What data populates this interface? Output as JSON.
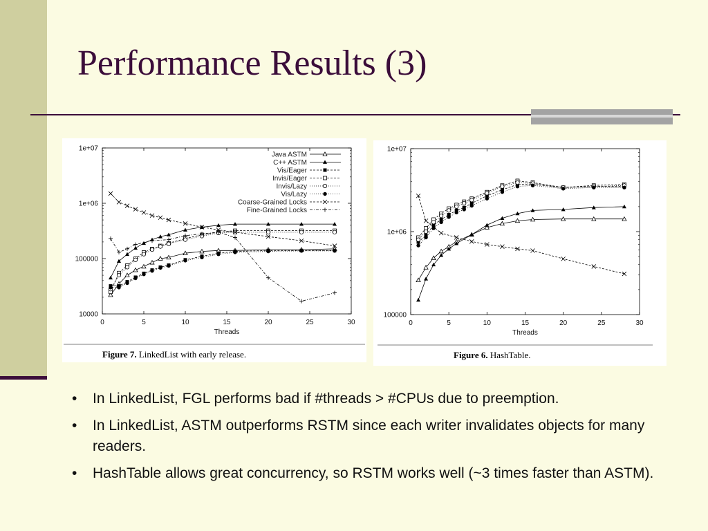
{
  "slide": {
    "title": "Performance Results (3)",
    "bullets": [
      "In LinkedList, FGL performs bad if #threads > #CPUs due to preemption.",
      "In LinkedList, ASTM outperforms RSTM since each writer invalidates objects for many readers.",
      "HashTable allows great concurrency, so RSTM works well (~3 times faster than ASTM)."
    ],
    "bullet_symbol": "•"
  },
  "chart_data": [
    {
      "type": "line",
      "caption_label": "Figure 7.",
      "caption_text": "LinkedList with early release.",
      "xlabel": "Threads",
      "ylabel": "",
      "x_ticks": [
        "0",
        "5",
        "10",
        "15",
        "20",
        "25",
        "30"
      ],
      "y_ticks": [
        "10000",
        "100000",
        "1e+06",
        "1e+07"
      ],
      "xlim": [
        0,
        30
      ],
      "ylim": [
        10000,
        10000000
      ],
      "y_scale": "log",
      "legend_position": "top-right",
      "series": [
        {
          "name": "Java ASTM",
          "marker": "open-triangle",
          "dash": "solid",
          "x": [
            1,
            2,
            3,
            4,
            5,
            6,
            7,
            8,
            10,
            12,
            14,
            16,
            20,
            24,
            28
          ],
          "y": [
            22000,
            35000,
            50000,
            62000,
            72000,
            85000,
            100000,
            105000,
            125000,
            135000,
            140000,
            140000,
            145000,
            145000,
            150000
          ]
        },
        {
          "name": "C++ ASTM",
          "marker": "filled-triangle",
          "dash": "solid",
          "x": [
            1,
            2,
            3,
            4,
            5,
            6,
            7,
            8,
            10,
            12,
            14,
            16,
            20,
            24,
            28
          ],
          "y": [
            45000,
            90000,
            120000,
            155000,
            190000,
            220000,
            250000,
            270000,
            330000,
            370000,
            400000,
            420000,
            420000,
            420000,
            420000
          ]
        },
        {
          "name": "Vis/Eager",
          "marker": "filled-square",
          "dash": "dashed",
          "x": [
            1,
            2,
            3,
            4,
            5,
            6,
            7,
            8,
            10,
            12,
            14,
            16,
            20,
            24,
            28
          ],
          "y": [
            32000,
            32000,
            38000,
            46000,
            54000,
            62000,
            70000,
            76000,
            95000,
            110000,
            125000,
            135000,
            140000,
            140000,
            140000
          ]
        },
        {
          "name": "Invis/Eager",
          "marker": "open-square",
          "dash": "dashed",
          "x": [
            1,
            2,
            3,
            4,
            5,
            6,
            7,
            8,
            10,
            12,
            14,
            16,
            20,
            24,
            28
          ],
          "y": [
            25000,
            55000,
            75000,
            100000,
            130000,
            150000,
            170000,
            190000,
            230000,
            270000,
            300000,
            320000,
            320000,
            320000,
            320000
          ]
        },
        {
          "name": "Invis/Lazy",
          "marker": "open-circle",
          "dash": "dotted",
          "x": [
            1,
            2,
            3,
            4,
            5,
            6,
            7,
            8,
            10,
            12,
            14,
            16,
            20,
            24,
            28
          ],
          "y": [
            28000,
            50000,
            70000,
            95000,
            120000,
            145000,
            165000,
            185000,
            220000,
            255000,
            290000,
            300000,
            300000,
            300000,
            300000
          ]
        },
        {
          "name": "Vis/Lazy",
          "marker": "filled-circle",
          "dash": "dotted",
          "x": [
            1,
            2,
            3,
            4,
            5,
            6,
            7,
            8,
            10,
            12,
            14,
            16,
            20,
            24,
            28
          ],
          "y": [
            30000,
            30000,
            36000,
            44000,
            52000,
            60000,
            68000,
            74000,
            92000,
            105000,
            120000,
            130000,
            135000,
            138000,
            138000
          ]
        },
        {
          "name": "Coarse-Grained Locks",
          "marker": "x",
          "dash": "dashed",
          "x": [
            1,
            2,
            3,
            4,
            5,
            6,
            7,
            8,
            10,
            12,
            14,
            16,
            20,
            24,
            28
          ],
          "y": [
            1500000,
            1050000,
            900000,
            780000,
            680000,
            600000,
            550000,
            500000,
            430000,
            370000,
            330000,
            300000,
            250000,
            210000,
            170000
          ]
        },
        {
          "name": "Fine-Grained Locks",
          "marker": "plus",
          "dash": "dash-dot",
          "x": [
            1,
            2,
            3,
            4,
            6,
            8,
            10,
            12,
            14,
            16,
            20,
            24,
            28
          ],
          "y": [
            230000,
            130000,
            150000,
            180000,
            210000,
            220000,
            260000,
            280000,
            300000,
            240000,
            45000,
            17000,
            24000
          ]
        }
      ]
    },
    {
      "type": "line",
      "caption_label": "Figure 6.",
      "caption_text": "HashTable.",
      "xlabel": "Threads",
      "ylabel": "",
      "x_ticks": [
        "0",
        "5",
        "10",
        "15",
        "20",
        "25",
        "30"
      ],
      "y_ticks": [
        "100000",
        "1e+06",
        "1e+07"
      ],
      "xlim": [
        0,
        30
      ],
      "ylim": [
        100000,
        10000000
      ],
      "y_scale": "log",
      "series": [
        {
          "name": "Java ASTM",
          "marker": "open-triangle",
          "dash": "solid",
          "x": [
            1,
            2,
            3,
            4,
            5,
            6,
            8,
            10,
            12,
            14,
            16,
            20,
            24,
            28
          ],
          "y": [
            260000,
            370000,
            480000,
            580000,
            660000,
            760000,
            920000,
            1120000,
            1250000,
            1350000,
            1400000,
            1420000,
            1420000,
            1420000
          ]
        },
        {
          "name": "C++ ASTM",
          "marker": "filled-triangle",
          "dash": "solid",
          "x": [
            1,
            2,
            3,
            4,
            5,
            6,
            8,
            10,
            12,
            14,
            16,
            20,
            24,
            28
          ],
          "y": [
            150000,
            270000,
            400000,
            520000,
            620000,
            720000,
            920000,
            1200000,
            1450000,
            1650000,
            1800000,
            1850000,
            1950000,
            2000000
          ]
        },
        {
          "name": "Vis/Eager",
          "marker": "filled-square",
          "dash": "dashed",
          "x": [
            1,
            2,
            3,
            4,
            5,
            6,
            7,
            8,
            10,
            12,
            14,
            16,
            20,
            24,
            28
          ],
          "y": [
            750000,
            900000,
            1200000,
            1400000,
            1600000,
            1800000,
            1950000,
            2200000,
            2700000,
            3200000,
            3700000,
            3700000,
            3400000,
            3500000,
            3500000
          ]
        },
        {
          "name": "Invis/Eager",
          "marker": "open-square",
          "dash": "dashed",
          "x": [
            1,
            2,
            3,
            4,
            5,
            6,
            7,
            8,
            10,
            12,
            14,
            16,
            20,
            24,
            28
          ],
          "y": [
            850000,
            1100000,
            1400000,
            1650000,
            1900000,
            2100000,
            2300000,
            2500000,
            3000000,
            3600000,
            4100000,
            3900000,
            3400000,
            3600000,
            3700000
          ]
        },
        {
          "name": "Invis/Lazy",
          "marker": "open-circle",
          "dash": "dotted",
          "x": [
            1,
            2,
            3,
            4,
            5,
            6,
            7,
            8,
            10,
            12,
            14,
            16,
            20,
            24,
            28
          ],
          "y": [
            800000,
            1000000,
            1300000,
            1550000,
            1800000,
            2000000,
            2200000,
            2400000,
            2900000,
            3500000,
            3900000,
            3800000,
            3400000,
            3500000,
            3600000
          ]
        },
        {
          "name": "Vis/Lazy",
          "marker": "filled-circle",
          "dash": "dotted",
          "x": [
            1,
            2,
            3,
            4,
            5,
            6,
            7,
            8,
            10,
            12,
            14,
            16,
            20,
            24,
            28
          ],
          "y": [
            680000,
            850000,
            1100000,
            1300000,
            1500000,
            1700000,
            1850000,
            2050000,
            2500000,
            3000000,
            3500000,
            3600000,
            3300000,
            3400000,
            3400000
          ]
        },
        {
          "name": "Coarse-Grained Locks",
          "marker": "x",
          "dash": "dashed",
          "x": [
            1,
            2,
            4,
            6,
            8,
            10,
            12,
            14,
            16,
            20,
            24,
            28
          ],
          "y": [
            2700000,
            1350000,
            960000,
            850000,
            760000,
            700000,
            660000,
            620000,
            590000,
            470000,
            380000,
            310000
          ]
        }
      ]
    }
  ]
}
